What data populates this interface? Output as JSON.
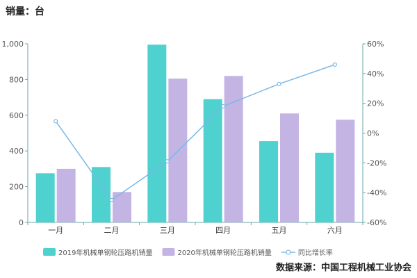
{
  "unit_label": "销量：台",
  "source_label": "数据来源：中国工程机械工业协会",
  "chart_data": {
    "type": "bar",
    "categories": [
      "一月",
      "二月",
      "三月",
      "四月",
      "五月",
      "六月"
    ],
    "series": [
      {
        "name": "2019年机械单钢轮压路机销量",
        "type": "bar",
        "axis": "left",
        "color": "#4fd1cf",
        "values": [
          275,
          310,
          995,
          690,
          455,
          390
        ]
      },
      {
        "name": "2020年机械单钢轮压路机销量",
        "type": "bar",
        "axis": "left",
        "color": "#c4b4e4",
        "values": [
          300,
          170,
          805,
          820,
          610,
          575
        ]
      },
      {
        "name": "同比增长率",
        "type": "line",
        "axis": "right",
        "color": "#7ab8e6",
        "values": [
          8,
          -45,
          -19,
          18,
          33,
          46
        ]
      }
    ],
    "y_left": {
      "min": 0,
      "max": 1000,
      "ticks": [
        "0",
        "200",
        "400",
        "600",
        "800",
        "1,000"
      ]
    },
    "y_right": {
      "min": -60,
      "max": 60,
      "ticks": [
        "-60%",
        "-40%",
        "-20%",
        "0%",
        "20%",
        "40%",
        "60%"
      ]
    },
    "legend_position": "bottom-left",
    "grid": false
  }
}
